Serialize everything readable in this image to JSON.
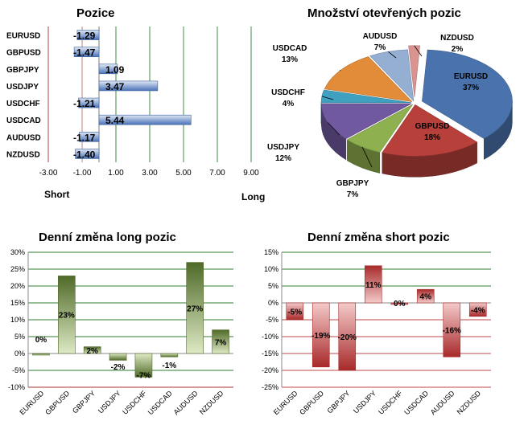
{
  "chart_data": [
    {
      "type": "bar",
      "orientation": "horizontal",
      "title": "Pozice",
      "categories": [
        "EURUSD",
        "GBPUSD",
        "GBPJPY",
        "USDJPY",
        "USDCHF",
        "USDCAD",
        "AUDUSD",
        "NZDUSD"
      ],
      "values": [
        -1.29,
        -1.47,
        1.09,
        3.47,
        -1.21,
        5.44,
        -1.17,
        -1.4
      ],
      "value_labels": [
        "-1.29",
        "-1.47",
        "1.09",
        "3.47",
        "-1.21",
        "5.44",
        "-1.17",
        "-1.40"
      ],
      "xlim": [
        -3,
        9
      ],
      "x_ticks": [
        "-3.00",
        "-1.00",
        "1.00",
        "3.00",
        "5.00",
        "7.00",
        "9.00"
      ],
      "xlabel_left": "Short",
      "xlabel_right": "Long",
      "colors": {
        "bar": "#4a72b8",
        "bar_light": "#dfe8f5",
        "grid": "#3f8c3f",
        "zero": "#b04040"
      }
    },
    {
      "type": "pie",
      "title": "Množství otevřených pozic",
      "slices": [
        {
          "label": "EURUSD",
          "value": 37,
          "pct": "37%",
          "color": "#4a72ad"
        },
        {
          "label": "GBPUSD",
          "value": 18,
          "pct": "18%",
          "color": "#b8403b"
        },
        {
          "label": "GBPJPY",
          "value": 7,
          "pct": "7%",
          "color": "#8fb04f"
        },
        {
          "label": "USDJPY",
          "value": 12,
          "pct": "12%",
          "color": "#7159a0"
        },
        {
          "label": "USDCHF",
          "value": 4,
          "pct": "4%",
          "color": "#3fa1bf"
        },
        {
          "label": "USDCAD",
          "value": 13,
          "pct": "13%",
          "color": "#e28b39"
        },
        {
          "label": "AUDUSD",
          "value": 7,
          "pct": "7%",
          "color": "#95afd3"
        },
        {
          "label": "NZDUSD",
          "value": 2,
          "pct": "2%",
          "color": "#d99390"
        }
      ]
    },
    {
      "type": "bar",
      "title": "Denní změna long pozic",
      "categories": [
        "EURUSD",
        "GBPUSD",
        "GBPJPY",
        "USDJPY",
        "USDCHF",
        "USDCAD",
        "AUDUSD",
        "NZDUSD"
      ],
      "values": [
        0,
        23,
        2,
        -2,
        -7,
        -1,
        27,
        7
      ],
      "value_labels": [
        "0%",
        "23%",
        "2%",
        "-2%",
        "-7%",
        "-1%",
        "27%",
        "7%"
      ],
      "ylim": [
        -10,
        30
      ],
      "y_ticks": [
        "-10%",
        "-5%",
        "0%",
        "5%",
        "10%",
        "15%",
        "20%",
        "25%",
        "30%"
      ],
      "colors": {
        "bar_dark": "#4f6a28",
        "bar_light": "#dde9c4",
        "grid": "#2f7d2f",
        "bottom": "#a83030"
      }
    },
    {
      "type": "bar",
      "title": "Denní změna short pozic",
      "categories": [
        "EURUSD",
        "GBPUSD",
        "GBPJPY",
        "USDJPY",
        "USDCHF",
        "USDCAD",
        "AUDUSD",
        "NZDUSD"
      ],
      "values": [
        -5,
        -19,
        -20,
        11,
        0,
        4,
        -16,
        -4
      ],
      "value_labels": [
        "-5%",
        "-19%",
        "-20%",
        "11%",
        "0%",
        "4%",
        "-16%",
        "-4%"
      ],
      "ylim": [
        -25,
        15
      ],
      "y_ticks": [
        "-25%",
        "-20%",
        "-15%",
        "-10%",
        "-5%",
        "0%",
        "5%",
        "10%",
        "15%"
      ],
      "colors": {
        "bar_dark": "#a82a2a",
        "bar_light": "#f4caca",
        "grid_pos": "#2f7d2f",
        "grid_neg": "#c04545",
        "bottom": "#a83030"
      }
    }
  ]
}
